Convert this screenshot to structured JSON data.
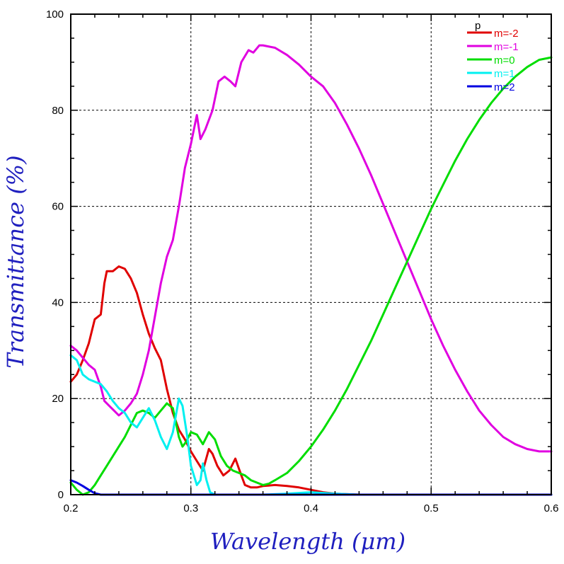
{
  "chart_data": {
    "type": "line",
    "xlabel": "Wavelength (μm)",
    "ylabel": "Transmittance (%)",
    "xlim": [
      0.2,
      0.6
    ],
    "ylim": [
      0,
      100
    ],
    "xticks": [
      0.2,
      0.3,
      0.4,
      0.5,
      0.6
    ],
    "xtick_labels": [
      "0.2",
      "0.3",
      "0.4",
      "0.5",
      "0.6"
    ],
    "yticks": [
      0,
      20,
      40,
      60,
      80,
      100
    ],
    "ytick_labels": [
      "0",
      "20",
      "40",
      "60",
      "80",
      "100"
    ],
    "grid": true,
    "legend": {
      "title": "p",
      "placement": "top-right"
    },
    "series": [
      {
        "name": "m=-2",
        "color": "#e00000",
        "points": [
          [
            0.2,
            23.5
          ],
          [
            0.205,
            25
          ],
          [
            0.21,
            28
          ],
          [
            0.215,
            31.5
          ],
          [
            0.22,
            36.5
          ],
          [
            0.225,
            37.5
          ],
          [
            0.228,
            44
          ],
          [
            0.23,
            46.5
          ],
          [
            0.235,
            46.5
          ],
          [
            0.24,
            47.5
          ],
          [
            0.245,
            47
          ],
          [
            0.25,
            45
          ],
          [
            0.255,
            42
          ],
          [
            0.26,
            37.5
          ],
          [
            0.265,
            33.5
          ],
          [
            0.27,
            30.5
          ],
          [
            0.275,
            28
          ],
          [
            0.28,
            22
          ],
          [
            0.285,
            17
          ],
          [
            0.29,
            13.5
          ],
          [
            0.295,
            11.5
          ],
          [
            0.3,
            9
          ],
          [
            0.305,
            7
          ],
          [
            0.31,
            5
          ],
          [
            0.315,
            9.5
          ],
          [
            0.318,
            8.5
          ],
          [
            0.322,
            6
          ],
          [
            0.327,
            4
          ],
          [
            0.332,
            5
          ],
          [
            0.337,
            7.5
          ],
          [
            0.342,
            4
          ],
          [
            0.345,
            2
          ],
          [
            0.35,
            1.5
          ],
          [
            0.355,
            1.5
          ],
          [
            0.36,
            1.8
          ],
          [
            0.37,
            2
          ],
          [
            0.38,
            1.8
          ],
          [
            0.39,
            1.5
          ],
          [
            0.4,
            1
          ],
          [
            0.41,
            0.5
          ],
          [
            0.42,
            0.2
          ],
          [
            0.44,
            0
          ],
          [
            0.6,
            0
          ]
        ]
      },
      {
        "name": "m=-1",
        "color": "#e000e0",
        "points": [
          [
            0.2,
            31
          ],
          [
            0.205,
            30
          ],
          [
            0.21,
            28.5
          ],
          [
            0.215,
            27
          ],
          [
            0.22,
            26
          ],
          [
            0.225,
            22.5
          ],
          [
            0.228,
            19.5
          ],
          [
            0.232,
            18.5
          ],
          [
            0.236,
            17.5
          ],
          [
            0.24,
            16.5
          ],
          [
            0.245,
            17.5
          ],
          [
            0.25,
            19
          ],
          [
            0.255,
            21
          ],
          [
            0.26,
            25
          ],
          [
            0.265,
            30
          ],
          [
            0.27,
            37
          ],
          [
            0.275,
            44
          ],
          [
            0.28,
            49.5
          ],
          [
            0.285,
            53
          ],
          [
            0.29,
            60
          ],
          [
            0.295,
            68
          ],
          [
            0.3,
            73
          ],
          [
            0.305,
            79
          ],
          [
            0.308,
            74
          ],
          [
            0.312,
            76
          ],
          [
            0.318,
            80
          ],
          [
            0.323,
            86
          ],
          [
            0.328,
            87
          ],
          [
            0.333,
            86
          ],
          [
            0.337,
            85
          ],
          [
            0.342,
            90
          ],
          [
            0.348,
            92.5
          ],
          [
            0.352,
            92
          ],
          [
            0.357,
            93.5
          ],
          [
            0.36,
            93.5
          ],
          [
            0.37,
            93
          ],
          [
            0.38,
            91.5
          ],
          [
            0.39,
            89.5
          ],
          [
            0.4,
            87
          ],
          [
            0.41,
            85
          ],
          [
            0.42,
            81.5
          ],
          [
            0.43,
            77
          ],
          [
            0.44,
            72
          ],
          [
            0.45,
            66.5
          ],
          [
            0.46,
            60.5
          ],
          [
            0.47,
            54.5
          ],
          [
            0.48,
            48.5
          ],
          [
            0.49,
            42.5
          ],
          [
            0.5,
            36.5
          ],
          [
            0.51,
            31
          ],
          [
            0.52,
            26
          ],
          [
            0.53,
            21.5
          ],
          [
            0.54,
            17.5
          ],
          [
            0.55,
            14.5
          ],
          [
            0.56,
            12
          ],
          [
            0.57,
            10.5
          ],
          [
            0.58,
            9.5
          ],
          [
            0.59,
            9
          ],
          [
            0.6,
            9
          ]
        ]
      },
      {
        "name": "m=0",
        "color": "#00dd00",
        "points": [
          [
            0.2,
            2.5
          ],
          [
            0.205,
            1
          ],
          [
            0.21,
            0
          ],
          [
            0.215,
            0.5
          ],
          [
            0.22,
            2
          ],
          [
            0.225,
            4
          ],
          [
            0.23,
            6
          ],
          [
            0.235,
            8
          ],
          [
            0.24,
            10
          ],
          [
            0.245,
            12
          ],
          [
            0.25,
            14.5
          ],
          [
            0.255,
            17
          ],
          [
            0.26,
            17.5
          ],
          [
            0.265,
            17
          ],
          [
            0.27,
            16
          ],
          [
            0.275,
            17.5
          ],
          [
            0.28,
            19
          ],
          [
            0.285,
            18
          ],
          [
            0.29,
            12
          ],
          [
            0.293,
            10
          ],
          [
            0.296,
            11
          ],
          [
            0.3,
            13
          ],
          [
            0.305,
            12.5
          ],
          [
            0.31,
            10.5
          ],
          [
            0.315,
            13
          ],
          [
            0.32,
            11.5
          ],
          [
            0.325,
            8
          ],
          [
            0.33,
            6
          ],
          [
            0.335,
            5
          ],
          [
            0.34,
            4.5
          ],
          [
            0.345,
            4
          ],
          [
            0.35,
            3
          ],
          [
            0.355,
            2.5
          ],
          [
            0.36,
            2
          ],
          [
            0.365,
            2.3
          ],
          [
            0.37,
            3
          ],
          [
            0.38,
            4.5
          ],
          [
            0.39,
            7
          ],
          [
            0.4,
            10
          ],
          [
            0.41,
            13.5
          ],
          [
            0.42,
            17.5
          ],
          [
            0.43,
            22
          ],
          [
            0.44,
            27
          ],
          [
            0.45,
            32
          ],
          [
            0.46,
            37.5
          ],
          [
            0.47,
            43
          ],
          [
            0.48,
            48.5
          ],
          [
            0.49,
            54
          ],
          [
            0.5,
            59.5
          ],
          [
            0.51,
            64.5
          ],
          [
            0.52,
            69.5
          ],
          [
            0.53,
            74
          ],
          [
            0.54,
            78
          ],
          [
            0.55,
            81.5
          ],
          [
            0.56,
            84.5
          ],
          [
            0.57,
            87
          ],
          [
            0.58,
            89
          ],
          [
            0.59,
            90.5
          ],
          [
            0.6,
            91
          ]
        ]
      },
      {
        "name": "m=1",
        "color": "#00f0f0",
        "points": [
          [
            0.2,
            29
          ],
          [
            0.205,
            28
          ],
          [
            0.21,
            25
          ],
          [
            0.215,
            24
          ],
          [
            0.22,
            23.5
          ],
          [
            0.225,
            23
          ],
          [
            0.23,
            21.5
          ],
          [
            0.235,
            19.5
          ],
          [
            0.24,
            18
          ],
          [
            0.245,
            17
          ],
          [
            0.25,
            15
          ],
          [
            0.255,
            14
          ],
          [
            0.26,
            16
          ],
          [
            0.265,
            18
          ],
          [
            0.27,
            15.5
          ],
          [
            0.275,
            12
          ],
          [
            0.28,
            9.5
          ],
          [
            0.285,
            13
          ],
          [
            0.29,
            20
          ],
          [
            0.293,
            18.5
          ],
          [
            0.297,
            12
          ],
          [
            0.3,
            6
          ],
          [
            0.305,
            2
          ],
          [
            0.308,
            3
          ],
          [
            0.31,
            6.5
          ],
          [
            0.313,
            3
          ],
          [
            0.316,
            0.5
          ],
          [
            0.32,
            0
          ],
          [
            0.34,
            0
          ],
          [
            0.36,
            0
          ],
          [
            0.38,
            0.2
          ],
          [
            0.4,
            0.5
          ],
          [
            0.42,
            0.2
          ],
          [
            0.44,
            0
          ],
          [
            0.6,
            0
          ]
        ]
      },
      {
        "name": "m=2",
        "color": "#0000e0",
        "points": [
          [
            0.2,
            3
          ],
          [
            0.205,
            2.5
          ],
          [
            0.21,
            1.8
          ],
          [
            0.215,
            1
          ],
          [
            0.22,
            0.3
          ],
          [
            0.225,
            0
          ],
          [
            0.3,
            0
          ],
          [
            0.4,
            0
          ],
          [
            0.5,
            0
          ],
          [
            0.6,
            0
          ]
        ]
      }
    ]
  }
}
